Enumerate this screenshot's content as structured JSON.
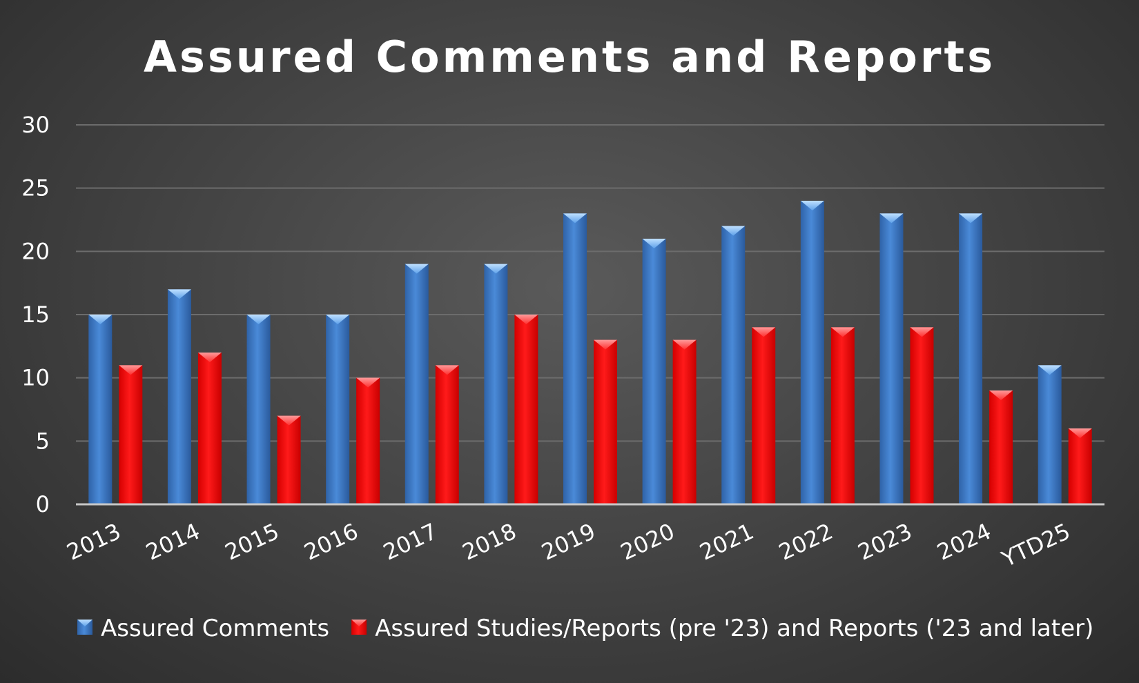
{
  "chart_data": {
    "type": "bar",
    "title": "Assured Comments and Reports",
    "xlabel": "",
    "ylabel": "",
    "categories": [
      "2013",
      "2014",
      "2015",
      "2016",
      "2017",
      "2018",
      "2019",
      "2020",
      "2021",
      "2022",
      "2023",
      "2024",
      "YTD25"
    ],
    "series": [
      {
        "name": "Assured Comments",
        "color": "#3a78c9",
        "values": [
          15,
          17,
          15,
          15,
          19,
          19,
          23,
          21,
          22,
          24,
          23,
          23,
          11
        ]
      },
      {
        "name": "Assured Studies/Reports (pre '23) and Reports ('23 and later)",
        "color": "#ff0000",
        "values": [
          11,
          12,
          7,
          10,
          11,
          15,
          13,
          13,
          14,
          14,
          14,
          9,
          6
        ]
      }
    ],
    "ylim": [
      0,
      30
    ],
    "yticks": [
      0,
      5,
      10,
      15,
      20,
      25,
      30
    ],
    "grid": true,
    "legend_position": "bottom"
  }
}
